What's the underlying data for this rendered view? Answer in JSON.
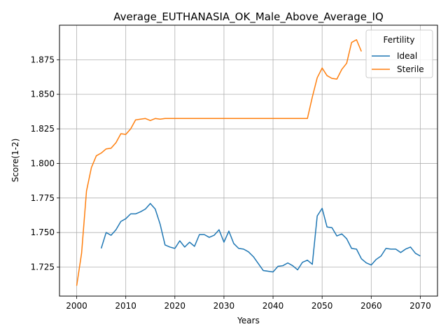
{
  "chart_data": {
    "type": "line",
    "title": "Average_EUTHANASIA_OK_Male_Above_Average_IQ",
    "xlabel": "Years",
    "ylabel": "Score(1-2)",
    "xlim": [
      1996.5,
      2073.5
    ],
    "ylim": [
      1.704,
      1.9
    ],
    "grid": true,
    "legend_placement": "top-right",
    "legend_title": "Fertility",
    "x_ticks": [
      2000,
      2010,
      2020,
      2030,
      2040,
      2050,
      2060,
      2070
    ],
    "y_ticks": [
      1.725,
      1.75,
      1.775,
      1.8,
      1.825,
      1.85,
      1.875
    ],
    "x_tick_labels": [
      "2000",
      "2010",
      "2020",
      "2030",
      "2040",
      "2050",
      "2060",
      "2070"
    ],
    "y_tick_labels": [
      "1.725",
      "1.750",
      "1.775",
      "1.800",
      "1.825",
      "1.850",
      "1.875"
    ],
    "series": [
      {
        "name": "Ideal",
        "color": "#1f77b4",
        "x": [
          2005,
          2006,
          2007,
          2008,
          2009,
          2010,
          2011,
          2012,
          2013,
          2014,
          2015,
          2016,
          2017,
          2018,
          2019,
          2020,
          2021,
          2022,
          2023,
          2024,
          2025,
          2026,
          2027,
          2028,
          2029,
          2030,
          2031,
          2032,
          2033,
          2034,
          2035,
          2036,
          2037,
          2038,
          2039,
          2040,
          2041,
          2042,
          2043,
          2044,
          2045,
          2046,
          2047,
          2048,
          2049,
          2050,
          2051,
          2052,
          2053,
          2054,
          2055,
          2056,
          2057,
          2058,
          2059,
          2060,
          2061,
          2062,
          2063,
          2064,
          2065,
          2066,
          2067,
          2068,
          2069,
          2070
        ],
        "y": [
          1.7385,
          1.75,
          1.748,
          1.752,
          1.758,
          1.76,
          1.7635,
          1.7635,
          1.765,
          1.767,
          1.771,
          1.767,
          1.756,
          1.741,
          1.7395,
          1.7385,
          1.744,
          1.7395,
          1.743,
          1.74,
          1.7485,
          1.7485,
          1.7465,
          1.748,
          1.752,
          1.743,
          1.751,
          1.742,
          1.7385,
          1.738,
          1.736,
          1.7325,
          1.7275,
          1.7225,
          1.722,
          1.7215,
          1.7255,
          1.726,
          1.728,
          1.726,
          1.723,
          1.7285,
          1.73,
          1.727,
          1.762,
          1.7675,
          1.754,
          1.7535,
          1.7475,
          1.749,
          1.7455,
          1.7385,
          1.738,
          1.731,
          1.728,
          1.7265,
          1.7305,
          1.733,
          1.7385,
          1.738,
          1.738,
          1.7355,
          1.738,
          1.7395,
          1.735,
          1.733
        ]
      },
      {
        "name": "Sterile",
        "color": "#ff7f0e",
        "x": [
          2000,
          2001,
          2002,
          2003,
          2004,
          2005,
          2006,
          2007,
          2008,
          2009,
          2010,
          2011,
          2012,
          2013,
          2014,
          2015,
          2016,
          2017,
          2018,
          2019,
          2020,
          2021,
          2022,
          2023,
          2024,
          2025,
          2026,
          2027,
          2028,
          2029,
          2030,
          2031,
          2032,
          2033,
          2034,
          2035,
          2036,
          2037,
          2038,
          2039,
          2040,
          2041,
          2042,
          2043,
          2044,
          2045,
          2046,
          2047,
          2048,
          2049,
          2050,
          2051,
          2052,
          2053,
          2054,
          2055,
          2056,
          2057,
          2058
        ],
        "y": [
          1.7115,
          1.735,
          1.78,
          1.797,
          1.8055,
          1.8075,
          1.8105,
          1.811,
          1.815,
          1.8215,
          1.821,
          1.825,
          1.8315,
          1.832,
          1.8325,
          1.831,
          1.8325,
          1.832,
          1.8325,
          1.8325,
          1.8325,
          1.8325,
          1.8325,
          1.8325,
          1.8325,
          1.8325,
          1.8325,
          1.8325,
          1.8325,
          1.8325,
          1.8325,
          1.8325,
          1.8325,
          1.8325,
          1.8325,
          1.8325,
          1.8325,
          1.8325,
          1.8325,
          1.8325,
          1.8325,
          1.8325,
          1.8325,
          1.8325,
          1.8325,
          1.8325,
          1.8325,
          1.8325,
          1.848,
          1.862,
          1.869,
          1.8635,
          1.8615,
          1.861,
          1.868,
          1.8725,
          1.8875,
          1.8895,
          1.881
        ]
      }
    ]
  }
}
